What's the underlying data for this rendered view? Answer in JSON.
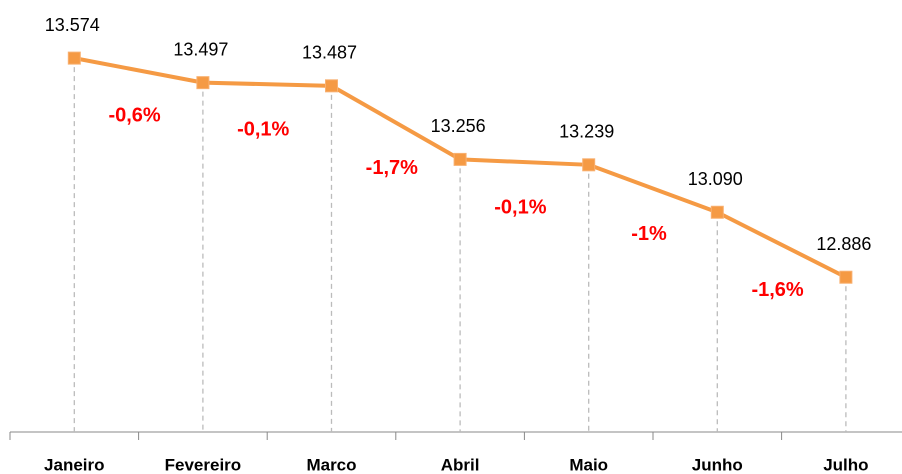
{
  "chart_data": {
    "type": "line",
    "categories": [
      "Janeiro",
      "Fevereiro",
      "Marco",
      "Abril",
      "Maio",
      "Junho",
      "Julho"
    ],
    "series": [
      {
        "color": "#f59a44",
        "values": [
          13574,
          13497,
          13487,
          13256,
          13239,
          13090,
          12886
        ],
        "value_labels": [
          "13.574",
          "13.497",
          "13.487",
          "13.256",
          "13.239",
          "13.090",
          "12.886"
        ]
      }
    ],
    "changes": {
      "values": [
        -0.6,
        -0.1,
        -1.7,
        -0.1,
        -1,
        -1.6
      ],
      "value_labels": [
        "-0,6%",
        "-0,1%",
        "-1,7%",
        "-0,1%",
        "-1%",
        "-1,6%"
      ]
    },
    "ylim": [
      12400,
      13700
    ]
  }
}
